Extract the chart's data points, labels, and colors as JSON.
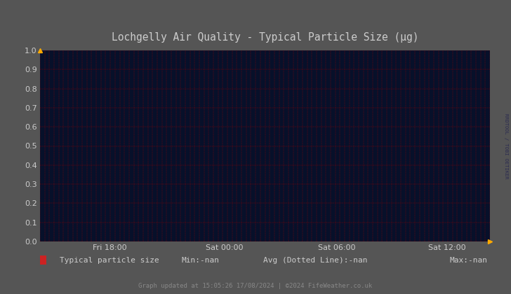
{
  "title": "Lochgelly Air Quality - Typical Particle Size (μg)",
  "bg_color": "#07102a",
  "outer_bg_color": "#555555",
  "grid_color": "#aa0000",
  "tick_label_color": "#cccccc",
  "title_color": "#cccccc",
  "ylim": [
    0.0,
    1.0
  ],
  "yticks": [
    0.0,
    0.1,
    0.2,
    0.3,
    0.4,
    0.5,
    0.6,
    0.7,
    0.8,
    0.9,
    1.0
  ],
  "xtick_labels": [
    "Fri 18:00",
    "Sat 00:00",
    "Sat 06:00",
    "Sat 12:00"
  ],
  "xtick_positions": [
    0.155,
    0.41,
    0.66,
    0.905
  ],
  "arrow_color": "#ffaa00",
  "legend_square_color": "#cc2222",
  "legend_text": "Typical particle size",
  "legend_min": "Min:-nan",
  "legend_avg": "Avg (Dotted Line):-nan",
  "legend_max": "Max:-nan",
  "footer_text": "Graph updated at 15:05:26 17/08/2024 | ©2024 FifeWeather.co.uk",
  "footer_color": "#888888",
  "watermark_text": "RRDTOOL / TOBI OETIKER",
  "watermark_color": "#2a2a50",
  "num_vertical_grid_lines": 96,
  "title_fontsize": 10.5,
  "tick_fontsize": 8
}
